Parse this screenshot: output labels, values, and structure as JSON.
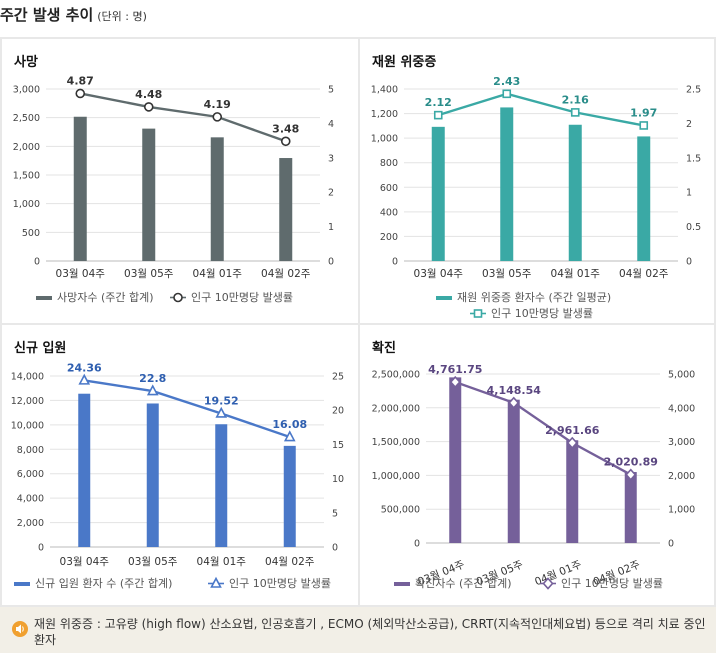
{
  "page": {
    "title": "주간 발생 추이",
    "unit": "(단위 : 명)"
  },
  "footnote": {
    "text": "재원 위중증 : 고유량 (high flow) 산소요법, 인공호흡기 , ECMO (체외막산소공급), CRRT(지속적인대체요법) 등으로 격리 치료 중인 환자",
    "icon": "speaker-icon",
    "icon_color": "#f0a030"
  },
  "chart_data": [
    {
      "type": "bar",
      "title": "사망",
      "categories": [
        "03월 04주",
        "03월 05주",
        "04월 01주",
        "04월 02주"
      ],
      "series": [
        {
          "name": "사망자수 (주간 합계)",
          "type": "bar",
          "axis": "left",
          "color": "#5f6b6d",
          "values": [
            2516,
            2309,
            2157,
            1796
          ]
        },
        {
          "name": "인구 10만명당 발생률",
          "type": "line",
          "axis": "right",
          "color": "#5f6b6d",
          "marker": "circle",
          "values": [
            4.87,
            4.48,
            4.19,
            3.48
          ],
          "labels": [
            "4.87",
            "4.48",
            "4.19",
            "3.48"
          ]
        }
      ],
      "y_left": {
        "min": 0,
        "max": 3000,
        "ticks": [
          0,
          500,
          1000,
          1500,
          2000,
          2500,
          3000
        ],
        "tick_labels": [
          "0",
          "500",
          "1,000",
          "1,500",
          "2,000",
          "2,500",
          "3,000"
        ]
      },
      "y_right": {
        "min": 0,
        "max": 5,
        "ticks": [
          0,
          1,
          2,
          3,
          4,
          5
        ],
        "tick_labels": [
          "0",
          "1",
          "2",
          "3",
          "4",
          "5"
        ]
      },
      "label_color": "#333333",
      "grid": true,
      "legend": "bottom"
    },
    {
      "type": "bar",
      "title": "재원 위중증",
      "categories": [
        "03월 04주",
        "03월 05주",
        "04월 01주",
        "04월 02주"
      ],
      "series": [
        {
          "name": "재원 위중증 환자수 (주간 일평균)",
          "type": "bar",
          "axis": "left",
          "color": "#3aa9a5",
          "values": [
            1092,
            1250,
            1109,
            1014
          ]
        },
        {
          "name": "인구 10만명당 발생률",
          "type": "line",
          "axis": "right",
          "color": "#3aa9a5",
          "marker": "square",
          "values": [
            2.12,
            2.43,
            2.16,
            1.97
          ],
          "labels": [
            "2.12",
            "2.43",
            "2.16",
            "1.97"
          ]
        }
      ],
      "y_left": {
        "min": 0,
        "max": 1400,
        "ticks": [
          0,
          200,
          400,
          600,
          800,
          1000,
          1200,
          1400
        ],
        "tick_labels": [
          "0",
          "200",
          "400",
          "600",
          "800",
          "1,000",
          "1,200",
          "1,400"
        ]
      },
      "y_right": {
        "min": 0,
        "max": 2.5,
        "ticks": [
          0,
          0.5,
          1,
          1.5,
          2,
          2.5
        ],
        "tick_labels": [
          "0",
          "0.5",
          "1",
          "1.5",
          "2",
          "2.5"
        ]
      },
      "label_color": "#2a8d8a",
      "grid": true,
      "legend": "bottom"
    },
    {
      "type": "bar",
      "title": "신규 입원",
      "categories": [
        "03월 04주",
        "03월 05주",
        "04월 01주",
        "04월 02주"
      ],
      "series": [
        {
          "name": "신규 입원 환자 수 (주간 합계)",
          "type": "bar",
          "axis": "left",
          "color": "#4a78c8",
          "values": [
            12550,
            11750,
            10050,
            8280
          ]
        },
        {
          "name": "인구 10만명당 발생률",
          "type": "line",
          "axis": "right",
          "color": "#4a78c8",
          "marker": "triangle",
          "values": [
            24.36,
            22.8,
            19.52,
            16.08
          ],
          "labels": [
            "24.36",
            "22.8",
            "19.52",
            "16.08"
          ]
        }
      ],
      "y_left": {
        "min": 0,
        "max": 14000,
        "ticks": [
          0,
          2000,
          4000,
          6000,
          8000,
          10000,
          12000,
          14000
        ],
        "tick_labels": [
          "0",
          "2,000",
          "4,000",
          "6,000",
          "8,000",
          "10,000",
          "12,000",
          "14,000"
        ]
      },
      "y_right": {
        "min": 0,
        "max": 25,
        "ticks": [
          0,
          5,
          10,
          15,
          20,
          25
        ],
        "tick_labels": [
          "0",
          "5",
          "10",
          "15",
          "20",
          "25"
        ]
      },
      "label_color": "#2f5fb0",
      "grid": true,
      "legend": "bottom"
    },
    {
      "type": "bar",
      "title": "확진",
      "categories": [
        "03월 04주",
        "03월 05주",
        "04월 01주",
        "04월 02주"
      ],
      "series": [
        {
          "name": "확진자수 (주간 합계)",
          "type": "bar",
          "axis": "left",
          "color": "#75609a",
          "values": [
            2450000,
            2120000,
            1520000,
            1050000
          ]
        },
        {
          "name": "인구 10만명당 발생률",
          "type": "line",
          "axis": "right",
          "color": "#75609a",
          "marker": "diamond",
          "values": [
            4761.75,
            4148.54,
            2961.66,
            2020.89
          ],
          "labels": [
            "4,761.75",
            "4,148.54",
            "2,961.66",
            "2,020.89"
          ]
        }
      ],
      "y_left": {
        "min": 0,
        "max": 2500000,
        "ticks": [
          0,
          500000,
          1000000,
          1500000,
          2000000,
          2500000
        ],
        "tick_labels": [
          "0",
          "500,000",
          "1,000,000",
          "1,500,000",
          "2,000,000",
          "2,500,000"
        ]
      },
      "y_right": {
        "min": 0,
        "max": 5000,
        "ticks": [
          0,
          1000,
          2000,
          3000,
          4000,
          5000
        ],
        "tick_labels": [
          "0",
          "1,000",
          "2,000",
          "3,000",
          "4,000",
          "5,000"
        ]
      },
      "label_color": "#5a4680",
      "x_tick_rotate": true,
      "grid": true,
      "legend": "bottom"
    }
  ]
}
